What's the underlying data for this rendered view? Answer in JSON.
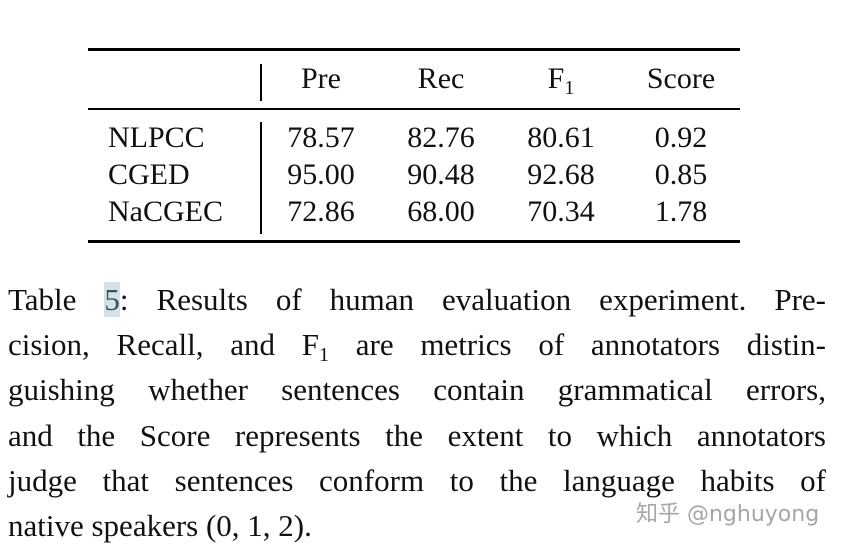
{
  "table": {
    "header": [
      "Pre",
      "Rec",
      {
        "text": "F",
        "sub": "1"
      },
      "Score"
    ],
    "rows": [
      {
        "label": "NLPCC",
        "values": [
          "78.57",
          "82.76",
          "80.61",
          "0.92"
        ]
      },
      {
        "label": "CGED",
        "values": [
          "95.00",
          "90.48",
          "92.68",
          "0.85"
        ]
      },
      {
        "label": "NaCGEC",
        "values": [
          "72.86",
          "68.00",
          "70.34",
          "1.78"
        ]
      }
    ]
  },
  "caption": {
    "lines": [
      [
        "Table ",
        "5",
        ": Results of human evaluation experiment. Pre-"
      ],
      [
        "cision, Recall, and F",
        "1",
        " are metrics of annotators distin-"
      ],
      [
        "guishing whether sentences contain grammatical errors,"
      ],
      [
        "and the Score represents the extent to which annotators"
      ],
      [
        "judge that sentences conform to the language habits of"
      ],
      [
        "native speakers (0, 1, 2)."
      ]
    ]
  },
  "watermark": "知乎 @nghuyong"
}
